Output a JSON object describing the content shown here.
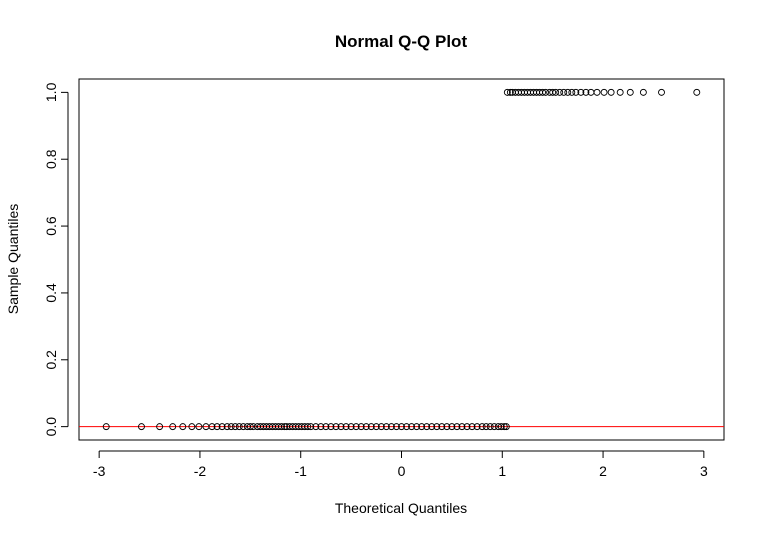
{
  "chart_data": {
    "type": "scatter",
    "title": "Normal Q-Q Plot",
    "xlabel": "Theoretical Quantiles",
    "ylabel": "Sample Quantiles",
    "xlim": [
      -3.2,
      3.2
    ],
    "ylim": [
      -0.04,
      1.04
    ],
    "x_ticks": [
      -3,
      -2,
      -1,
      0,
      1,
      2,
      3
    ],
    "x_tick_labels": [
      "-3",
      "-2",
      "-1",
      "0",
      "1",
      "2",
      "3"
    ],
    "y_ticks": [
      0.0,
      0.2,
      0.4,
      0.6,
      0.8,
      1.0
    ],
    "y_tick_labels": [
      "0.0",
      "0.2",
      "0.4",
      "0.6",
      "0.8",
      "1.0"
    ],
    "grid": false,
    "marker": "open-circle",
    "point_color": "#000000",
    "series": [
      {
        "x": [
          -2.93,
          -2.58,
          -2.4,
          -2.27,
          -2.17,
          -2.08,
          -2.01,
          -1.94,
          -1.88,
          -1.83,
          -1.78,
          -1.73,
          -1.69,
          -1.65,
          -1.61,
          -1.57,
          -1.53,
          -1.5,
          -1.47,
          -1.43,
          -1.4,
          -1.37,
          -1.34,
          -1.31,
          -1.28,
          -1.25,
          -1.22,
          -1.19,
          -1.16,
          -1.14,
          -1.11,
          -1.08,
          -1.05,
          -1.02,
          -0.99,
          -0.96,
          -0.93,
          -0.9,
          -0.85,
          -0.8,
          -0.75,
          -0.7,
          -0.65,
          -0.6,
          -0.55,
          -0.5,
          -0.45,
          -0.4,
          -0.35,
          -0.3,
          -0.25,
          -0.2,
          -0.15,
          -0.1,
          -0.05,
          0.0,
          0.05,
          0.1,
          0.15,
          0.2,
          0.25,
          0.3,
          0.35,
          0.4,
          0.45,
          0.5,
          0.55,
          0.6,
          0.65,
          0.7,
          0.75,
          0.8,
          0.84,
          0.88,
          0.92,
          0.96,
          0.99,
          1.02,
          1.04
        ],
        "y": [
          0,
          0,
          0,
          0,
          0,
          0,
          0,
          0,
          0,
          0,
          0,
          0,
          0,
          0,
          0,
          0,
          0,
          0,
          0,
          0,
          0,
          0,
          0,
          0,
          0,
          0,
          0,
          0,
          0,
          0,
          0,
          0,
          0,
          0,
          0,
          0,
          0,
          0,
          0,
          0,
          0,
          0,
          0,
          0,
          0,
          0,
          0,
          0,
          0,
          0,
          0,
          0,
          0,
          0,
          0,
          0,
          0,
          0,
          0,
          0,
          0,
          0,
          0,
          0,
          0,
          0,
          0,
          0,
          0,
          0,
          0,
          0,
          0,
          0,
          0,
          0,
          0,
          0,
          0
        ]
      },
      {
        "x": [
          1.05,
          1.08,
          1.1,
          1.13,
          1.16,
          1.19,
          1.22,
          1.25,
          1.28,
          1.31,
          1.34,
          1.37,
          1.4,
          1.43,
          1.47,
          1.5,
          1.53,
          1.57,
          1.61,
          1.65,
          1.69,
          1.73,
          1.78,
          1.83,
          1.88,
          1.94,
          2.01,
          2.08,
          2.17,
          2.27,
          2.4,
          2.58,
          2.93
        ],
        "y": [
          1,
          1,
          1,
          1,
          1,
          1,
          1,
          1,
          1,
          1,
          1,
          1,
          1,
          1,
          1,
          1,
          1,
          1,
          1,
          1,
          1,
          1,
          1,
          1,
          1,
          1,
          1,
          1,
          1,
          1,
          1,
          1,
          1
        ]
      }
    ],
    "reference_line": {
      "intercept": 0,
      "slope": 0,
      "color": "#ff0000"
    }
  }
}
